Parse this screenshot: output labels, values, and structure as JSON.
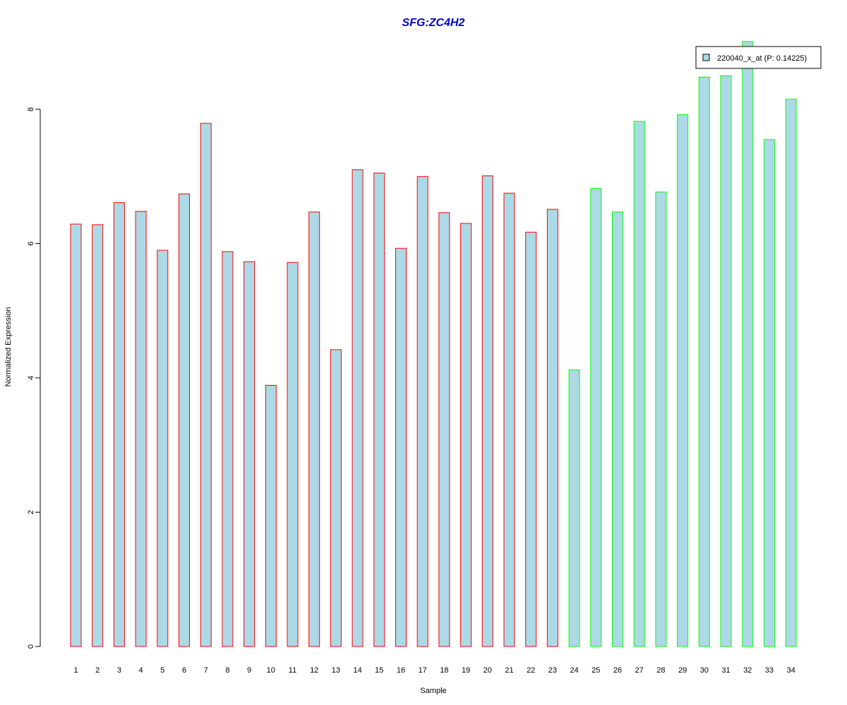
{
  "colors": {
    "bar_fill": "#add8e6",
    "group1_border": "#ff0000",
    "group2_border": "#00ff00",
    "title": "#0000cc",
    "axis": "#000000"
  },
  "chart_data": {
    "type": "bar",
    "title": "SFG:ZC4H2",
    "xlabel": "Sample",
    "ylabel": "Normalized Expression",
    "ylim": [
      0,
      9
    ],
    "yticks": [
      0,
      2,
      4,
      6,
      8
    ],
    "grid": false,
    "legend_position": "top-right",
    "categories": [
      "1",
      "2",
      "3",
      "4",
      "5",
      "6",
      "7",
      "8",
      "9",
      "10",
      "11",
      "12",
      "13",
      "14",
      "15",
      "16",
      "17",
      "18",
      "19",
      "20",
      "21",
      "22",
      "23",
      "24",
      "25",
      "26",
      "27",
      "28",
      "29",
      "30",
      "31",
      "32",
      "33",
      "34"
    ],
    "series": [
      {
        "name": "220040_x_at (P: 0.14225)",
        "values": [
          6.29,
          6.28,
          6.61,
          6.48,
          5.9,
          6.74,
          7.79,
          5.88,
          5.73,
          3.89,
          5.72,
          6.47,
          4.42,
          7.1,
          7.05,
          5.93,
          7.0,
          6.46,
          6.3,
          7.01,
          6.75,
          6.17,
          6.51,
          4.12,
          6.82,
          6.47,
          7.82,
          6.77,
          7.92,
          8.48,
          8.5,
          9.01,
          7.55,
          8.15
        ],
        "groups": [
          1,
          1,
          1,
          1,
          1,
          1,
          1,
          1,
          1,
          1,
          1,
          1,
          1,
          1,
          1,
          1,
          1,
          1,
          1,
          1,
          1,
          1,
          1,
          2,
          2,
          2,
          2,
          2,
          2,
          2,
          2,
          2,
          2,
          2
        ]
      }
    ]
  }
}
